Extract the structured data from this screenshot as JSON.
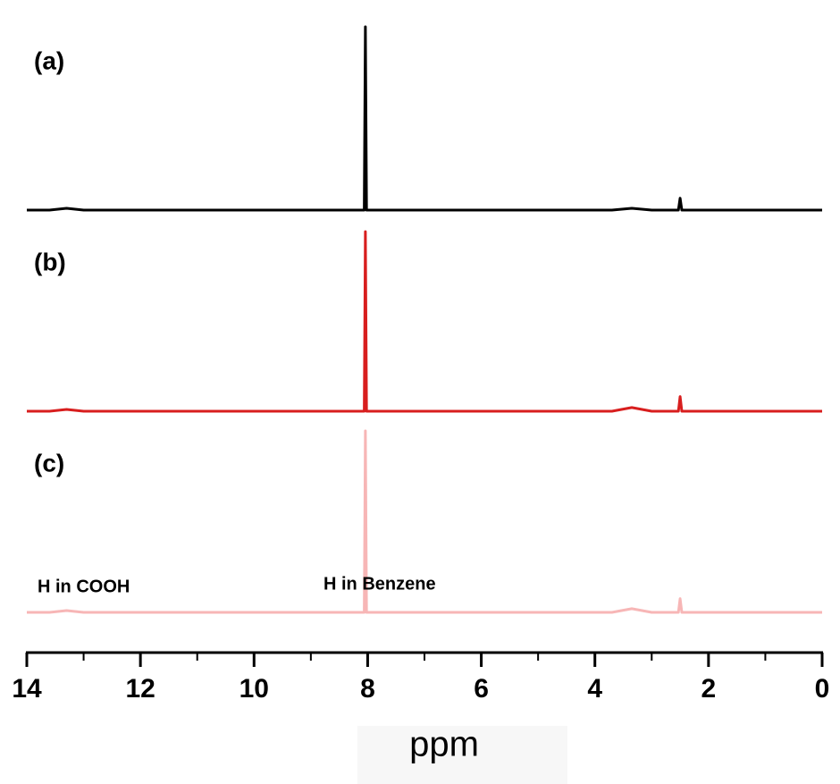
{
  "chart_data": {
    "type": "line",
    "xlabel": "ppm",
    "xlim": [
      14,
      0
    ],
    "xticks": [
      14,
      12,
      10,
      8,
      6,
      4,
      2,
      0
    ],
    "xticks_minor": [
      13,
      11,
      9,
      7,
      5,
      3,
      1
    ],
    "ylim": [
      0,
      100
    ],
    "annotations": [
      {
        "text": "H in COOH",
        "x": 13.3
      },
      {
        "text": "H in Benzene",
        "x": 8.04
      }
    ],
    "series": [
      {
        "name": "(a)",
        "color": "#000000",
        "x": [
          14,
          13.6,
          13.3,
          13.0,
          8.1,
          8.06,
          8.04,
          8.02,
          7.98,
          3.7,
          3.35,
          3.0,
          2.53,
          2.5,
          2.47,
          0
        ],
        "values": [
          0,
          0,
          1,
          0,
          0,
          0,
          100,
          0,
          0,
          0,
          1,
          0,
          0,
          6.5,
          0,
          0
        ]
      },
      {
        "name": "(b)",
        "color": "#d81e1e",
        "x": [
          14,
          13.6,
          13.3,
          13.0,
          8.1,
          8.06,
          8.04,
          8.02,
          7.98,
          3.7,
          3.35,
          3.0,
          2.53,
          2.5,
          2.47,
          0
        ],
        "values": [
          0,
          0,
          1,
          0,
          0,
          0,
          98,
          0,
          0,
          0,
          2,
          0,
          0,
          8,
          0,
          0
        ]
      },
      {
        "name": "(c)",
        "color": "#f7b6b6",
        "x": [
          14,
          13.6,
          13.3,
          13.0,
          8.1,
          8.06,
          8.04,
          8.02,
          7.98,
          3.7,
          3.35,
          3.0,
          2.53,
          2.5,
          2.47,
          0
        ],
        "values": [
          0,
          0,
          1,
          0,
          0,
          0,
          99,
          0,
          0,
          0,
          2,
          0,
          0,
          7.5,
          0,
          0
        ]
      }
    ]
  }
}
